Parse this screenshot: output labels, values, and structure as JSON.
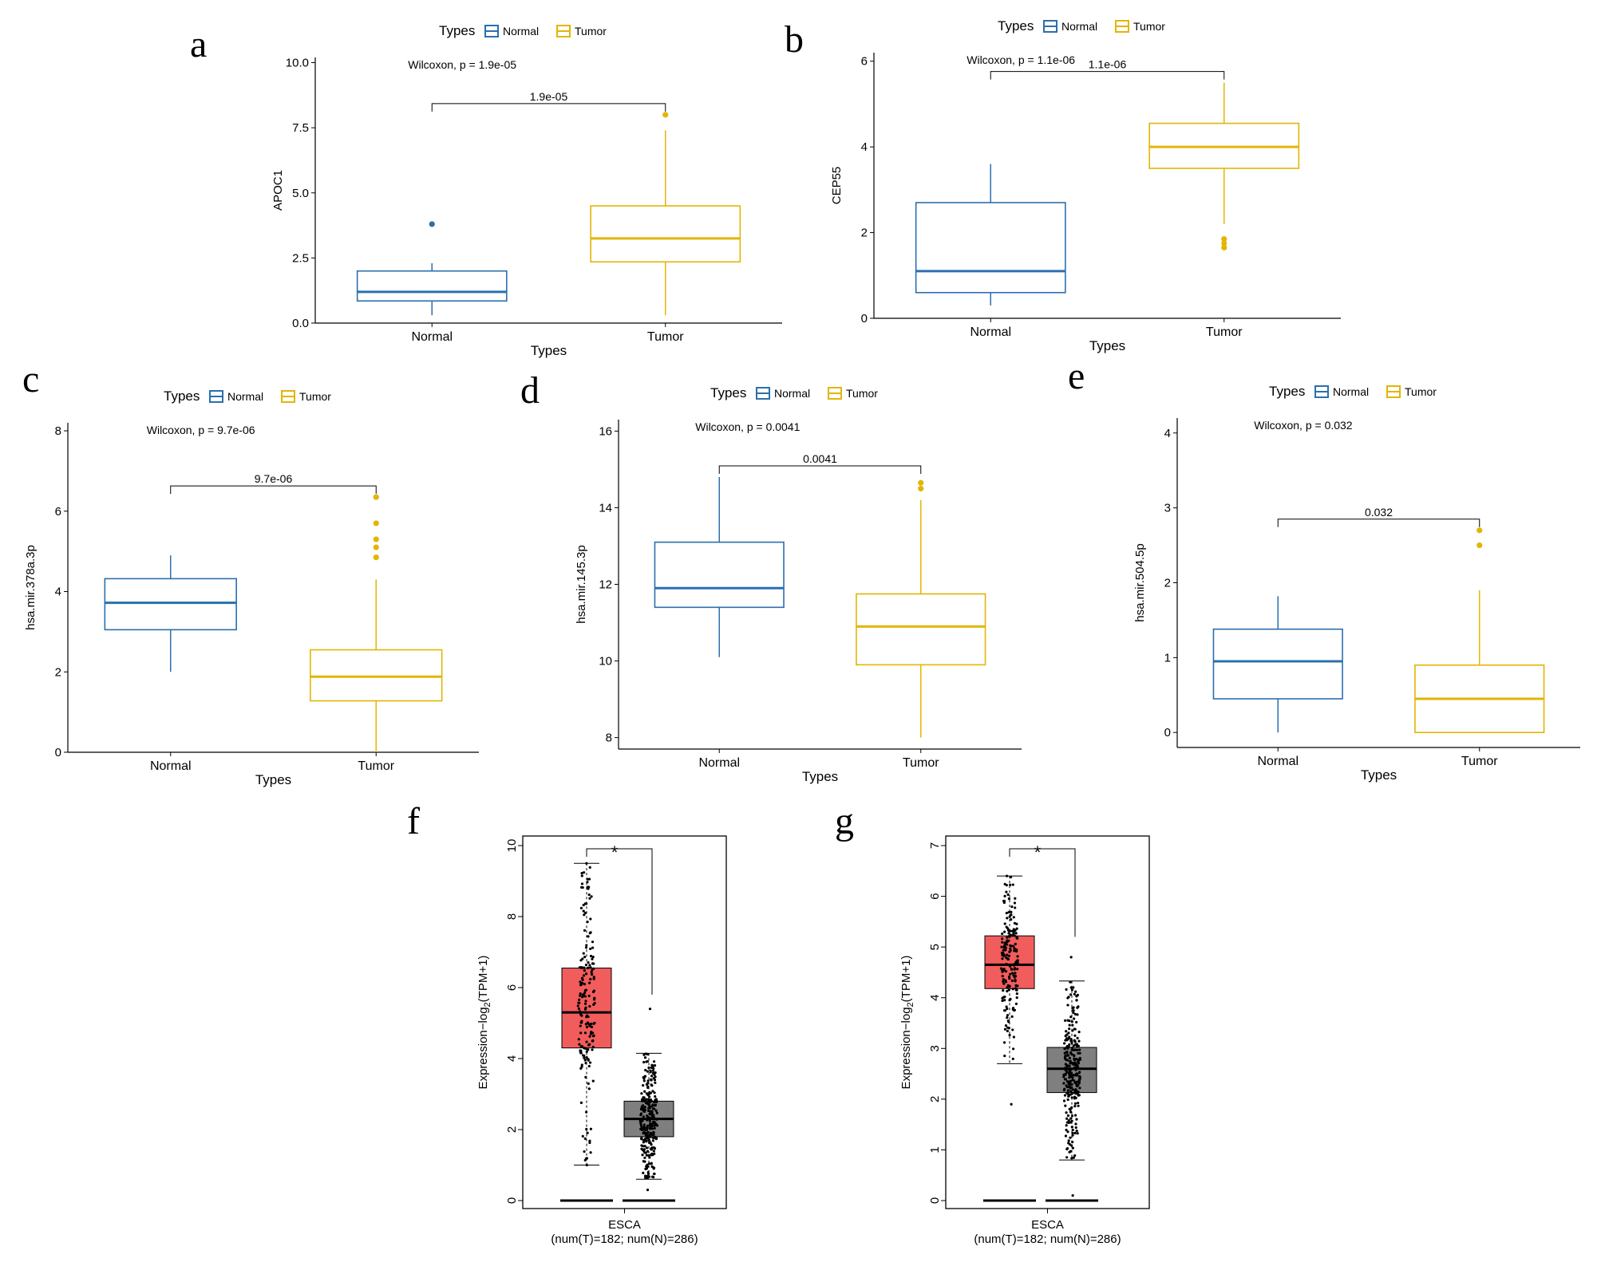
{
  "figure_title": "",
  "colors": {
    "normal": "#2b6fad",
    "tumor": "#e3b505",
    "gepia_tumor": "#f15c5c",
    "gepia_normal": "#7f7f7f",
    "star": "#e00000"
  },
  "chart_data": [
    {
      "panel": "a",
      "type": "box",
      "ylabel": "APOC1",
      "xlabel": "Types",
      "legend": {
        "title": "Types",
        "entries": [
          "Normal",
          "Tumor"
        ]
      },
      "stat_label": "Wilcoxon, p = 1.9e-05",
      "bracket_label": "1.9e-05",
      "ylim": [
        0,
        10.2
      ],
      "yticks": [
        "0.0",
        "2.5",
        "5.0",
        "7.5",
        "10.0"
      ],
      "categories": [
        "Normal",
        "Tumor"
      ],
      "boxes": [
        {
          "name": "Normal",
          "whisker_low": 0.3,
          "q1": 0.85,
          "median": 1.2,
          "q3": 2.0,
          "whisker_high": 2.3,
          "outliers": [
            3.8
          ]
        },
        {
          "name": "Tumor",
          "whisker_low": 0.3,
          "q1": 2.35,
          "median": 3.25,
          "q3": 4.5,
          "whisker_high": 7.4,
          "outliers": [
            8.0
          ]
        }
      ]
    },
    {
      "panel": "b",
      "type": "box",
      "ylabel": "CEP55",
      "xlabel": "Types",
      "legend": {
        "title": "Types",
        "entries": [
          "Normal",
          "Tumor"
        ]
      },
      "stat_label": "Wilcoxon, p = 1.1e-06",
      "bracket_label": "1.1e-06",
      "ylim": [
        0,
        6.2
      ],
      "yticks": [
        "0",
        "2",
        "4",
        "6"
      ],
      "categories": [
        "Normal",
        "Tumor"
      ],
      "boxes": [
        {
          "name": "Normal",
          "whisker_low": 0.3,
          "q1": 0.6,
          "median": 1.1,
          "q3": 2.7,
          "whisker_high": 3.6,
          "outliers": []
        },
        {
          "name": "Tumor",
          "whisker_low": 2.2,
          "q1": 3.5,
          "median": 4.0,
          "q3": 4.55,
          "whisker_high": 5.5,
          "outliers": [
            1.85,
            1.75,
            1.65
          ]
        }
      ]
    },
    {
      "panel": "c",
      "type": "box",
      "ylabel": "hsa.mir.378a.3p",
      "xlabel": "Types",
      "legend": {
        "title": "Types",
        "entries": [
          "Normal",
          "Tumor"
        ]
      },
      "stat_label": "Wilcoxon, p = 9.7e-06",
      "bracket_label": "9.7e-06",
      "ylim": [
        0,
        8.2
      ],
      "yticks": [
        "0",
        "2",
        "4",
        "6",
        "8"
      ],
      "categories": [
        "Normal",
        "Tumor"
      ],
      "boxes": [
        {
          "name": "Normal",
          "whisker_low": 2.0,
          "q1": 3.05,
          "median": 3.72,
          "q3": 4.32,
          "whisker_high": 4.9,
          "outliers": []
        },
        {
          "name": "Tumor",
          "whisker_low": 0.0,
          "q1": 1.28,
          "median": 1.88,
          "q3": 2.55,
          "whisker_high": 4.3,
          "outliers": [
            6.35,
            5.7,
            5.3,
            5.1,
            4.85
          ]
        }
      ]
    },
    {
      "panel": "d",
      "type": "box",
      "ylabel": "hsa.mir.145.3p",
      "xlabel": "Types",
      "legend": {
        "title": "Types",
        "entries": [
          "Normal",
          "Tumor"
        ]
      },
      "stat_label": "Wilcoxon, p = 0.0041",
      "bracket_label": "0.0041",
      "ylim": [
        7.7,
        16.3
      ],
      "yticks": [
        "8",
        "10",
        "12",
        "14",
        "16"
      ],
      "categories": [
        "Normal",
        "Tumor"
      ],
      "boxes": [
        {
          "name": "Normal",
          "whisker_low": 10.1,
          "q1": 11.4,
          "median": 11.9,
          "q3": 13.1,
          "whisker_high": 14.8,
          "outliers": []
        },
        {
          "name": "Tumor",
          "whisker_low": 8.0,
          "q1": 9.9,
          "median": 10.9,
          "q3": 11.75,
          "whisker_high": 14.2,
          "outliers": [
            14.65,
            14.5
          ]
        }
      ]
    },
    {
      "panel": "e",
      "type": "box",
      "ylabel": "hsa.mir.504.5p",
      "xlabel": "Types",
      "legend": {
        "title": "Types",
        "entries": [
          "Normal",
          "Tumor"
        ]
      },
      "stat_label": "Wilcoxon, p = 0.032",
      "bracket_label": "0.032",
      "ylim": [
        -0.2,
        4.2
      ],
      "yticks": [
        "0",
        "1",
        "2",
        "3",
        "4"
      ],
      "categories": [
        "Normal",
        "Tumor"
      ],
      "boxes": [
        {
          "name": "Normal",
          "whisker_low": 0.0,
          "q1": 0.45,
          "median": 0.95,
          "q3": 1.38,
          "whisker_high": 1.82,
          "outliers": []
        },
        {
          "name": "Tumor",
          "whisker_low": 0.0,
          "q1": 0.0,
          "median": 0.45,
          "q3": 0.9,
          "whisker_high": 1.9,
          "outliers": [
            2.7,
            2.5
          ]
        }
      ]
    },
    {
      "panel": "f",
      "type": "box",
      "ylabel": "Expression - log2(TPM + 1)",
      "ylabel_main": "Expression−log",
      "ylabel_sub": "2",
      "ylabel_tail": "(TPM+1)",
      "xlabel": "ESCA",
      "xlabel2": "(num(T)=182; num(N)=286)",
      "significance": "*",
      "ylim": [
        0,
        10
      ],
      "yticks": [
        "0",
        "2",
        "4",
        "6",
        "8",
        "10"
      ],
      "boxes": [
        {
          "name": "Tumor",
          "whisker_low": 1.0,
          "q1": 4.3,
          "median": 5.3,
          "q3": 6.55,
          "whisker_high": 9.5,
          "point_min": 1.0,
          "point_max": 9.5
        },
        {
          "name": "Normal",
          "whisker_low": 0.6,
          "q1": 1.8,
          "median": 2.3,
          "q3": 2.8,
          "whisker_high": 4.15,
          "point_min": 0.3,
          "point_max": 5.4
        }
      ]
    },
    {
      "panel": "g",
      "type": "box",
      "ylabel": "Expression - log2(TPM + 1)",
      "ylabel_main": "Expression−log",
      "ylabel_sub": "2",
      "ylabel_tail": "(TPM+1)",
      "xlabel": "ESCA",
      "xlabel2": "(num(T)=182; num(N)=286)",
      "significance": "*",
      "ylim": [
        0,
        7
      ],
      "yticks": [
        "0",
        "1",
        "2",
        "3",
        "4",
        "5",
        "6",
        "7"
      ],
      "boxes": [
        {
          "name": "Tumor",
          "whisker_low": 2.7,
          "q1": 4.18,
          "median": 4.65,
          "q3": 5.22,
          "whisker_high": 6.4,
          "point_min": 1.9,
          "point_max": 6.4
        },
        {
          "name": "Normal",
          "whisker_low": 0.8,
          "q1": 2.13,
          "median": 2.6,
          "q3": 3.02,
          "whisker_high": 4.33,
          "point_min": 0.1,
          "point_max": 4.8
        }
      ]
    }
  ]
}
